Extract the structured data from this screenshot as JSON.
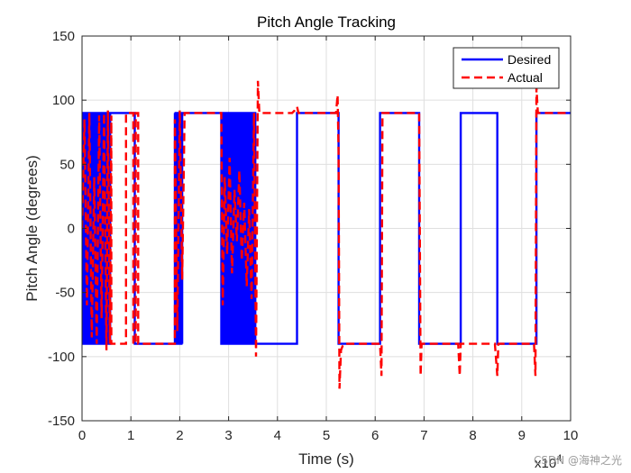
{
  "chart_data": {
    "type": "line",
    "title": "Pitch Angle Tracking",
    "xlabel": "Time (s)",
    "ylabel": "Pitch Angle (degrees)",
    "x_exponent_label": "x10",
    "x_exponent_power": "4",
    "xlim": [
      0,
      10
    ],
    "ylim": [
      -150,
      150
    ],
    "xticks": [
      0,
      1,
      2,
      3,
      4,
      5,
      6,
      7,
      8,
      9,
      10
    ],
    "yticks": [
      -150,
      -100,
      -50,
      0,
      50,
      100,
      150
    ],
    "grid": true,
    "legend_position": "top-right",
    "series": [
      {
        "name": "Desired",
        "color": "#0000ff",
        "style": "solid",
        "segments": [
          {
            "kind": "osc",
            "from": 0.0,
            "to": 0.58,
            "low": -90,
            "high": 90,
            "period": 0.05
          },
          {
            "kind": "step",
            "points": [
              [
                0.58,
                90
              ],
              [
                1.08,
                90
              ],
              [
                1.08,
                -90
              ],
              [
                1.9,
                -90
              ],
              [
                1.9,
                90
              ]
            ]
          },
          {
            "kind": "osc",
            "from": 1.9,
            "to": 2.05,
            "low": -90,
            "high": 90,
            "period": 0.03
          },
          {
            "kind": "step",
            "points": [
              [
                2.05,
                90
              ],
              [
                2.85,
                90
              ]
            ]
          },
          {
            "kind": "osc",
            "from": 2.85,
            "to": 3.55,
            "low": -90,
            "high": 90,
            "period": 0.012
          },
          {
            "kind": "step",
            "points": [
              [
                3.55,
                -90
              ],
              [
                4.4,
                -90
              ],
              [
                4.4,
                90
              ],
              [
                5.25,
                90
              ],
              [
                5.25,
                -90
              ],
              [
                6.1,
                -90
              ],
              [
                6.1,
                90
              ],
              [
                6.9,
                90
              ],
              [
                6.9,
                -90
              ],
              [
                7.75,
                -90
              ],
              [
                7.75,
                90
              ],
              [
                8.5,
                90
              ],
              [
                8.5,
                -90
              ],
              [
                9.3,
                -90
              ],
              [
                9.3,
                90
              ],
              [
                10.0,
                90
              ]
            ]
          }
        ]
      },
      {
        "name": "Actual",
        "color": "#ff0000",
        "style": "dashed",
        "points": [
          [
            0.0,
            0
          ],
          [
            0.05,
            85
          ],
          [
            0.1,
            -60
          ],
          [
            0.15,
            90
          ],
          [
            0.2,
            -85
          ],
          [
            0.25,
            40
          ],
          [
            0.3,
            -90
          ],
          [
            0.35,
            88
          ],
          [
            0.4,
            -70
          ],
          [
            0.45,
            90
          ],
          [
            0.5,
            -95
          ],
          [
            0.53,
            92
          ],
          [
            0.57,
            -90
          ],
          [
            0.6,
            88
          ],
          [
            0.6,
            -90
          ],
          [
            0.9,
            -90
          ],
          [
            0.9,
            90
          ],
          [
            1.05,
            90
          ],
          [
            1.05,
            -90
          ],
          [
            1.1,
            -90
          ],
          [
            1.1,
            90
          ],
          [
            1.15,
            90
          ],
          [
            1.15,
            -90
          ],
          [
            1.9,
            -90
          ],
          [
            1.9,
            85
          ],
          [
            1.95,
            -80
          ],
          [
            2.0,
            92
          ],
          [
            2.05,
            -40
          ],
          [
            2.1,
            90
          ],
          [
            2.85,
            90
          ],
          [
            2.88,
            -60
          ],
          [
            2.92,
            40
          ],
          [
            2.97,
            -20
          ],
          [
            3.02,
            55
          ],
          [
            3.07,
            -35
          ],
          [
            3.12,
            30
          ],
          [
            3.17,
            -10
          ],
          [
            3.22,
            45
          ],
          [
            3.27,
            -25
          ],
          [
            3.32,
            20
          ],
          [
            3.37,
            -45
          ],
          [
            3.42,
            15
          ],
          [
            3.47,
            -55
          ],
          [
            3.52,
            90
          ],
          [
            3.56,
            -100
          ],
          [
            3.6,
            115
          ],
          [
            3.63,
            90
          ],
          [
            4.3,
            90
          ],
          [
            4.35,
            92
          ],
          [
            4.4,
            95
          ],
          [
            4.43,
            90
          ],
          [
            5.2,
            90
          ],
          [
            5.23,
            104
          ],
          [
            5.25,
            60
          ],
          [
            5.27,
            -125
          ],
          [
            5.3,
            -95
          ],
          [
            5.35,
            -90
          ],
          [
            6.1,
            -90
          ],
          [
            6.13,
            -115
          ],
          [
            6.15,
            90
          ],
          [
            6.9,
            90
          ],
          [
            6.93,
            -115
          ],
          [
            6.95,
            -90
          ],
          [
            7.7,
            -90
          ],
          [
            7.73,
            -115
          ],
          [
            7.75,
            -90
          ],
          [
            8.45,
            -90
          ],
          [
            8.5,
            -115
          ],
          [
            8.52,
            -90
          ],
          [
            9.25,
            -90
          ],
          [
            9.28,
            -115
          ],
          [
            9.3,
            110
          ],
          [
            9.33,
            90
          ],
          [
            10.0,
            90
          ]
        ]
      }
    ]
  },
  "watermark": "CSDN @海神之光"
}
